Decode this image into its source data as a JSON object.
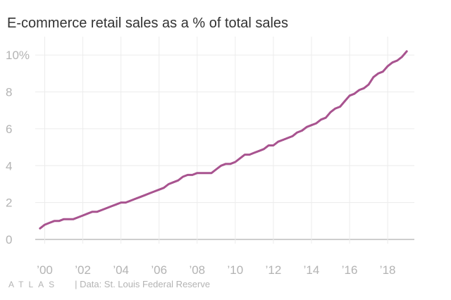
{
  "chart_data": {
    "type": "line",
    "title": "E-commerce retail sales as a % of total sales",
    "xlabel": "",
    "ylabel": "",
    "xlim": [
      1999.5,
      2019.4
    ],
    "ylim": [
      0,
      11
    ],
    "yticks": [
      {
        "value": 0,
        "label": "0"
      },
      {
        "value": 2,
        "label": "2"
      },
      {
        "value": 4,
        "label": "4"
      },
      {
        "value": 6,
        "label": "6"
      },
      {
        "value": 8,
        "label": "8"
      },
      {
        "value": 10,
        "label": "10%"
      }
    ],
    "xticks": [
      {
        "value": 2000,
        "label": "’00"
      },
      {
        "value": 2002,
        "label": "’02"
      },
      {
        "value": 2004,
        "label": "’04"
      },
      {
        "value": 2006,
        "label": "’06"
      },
      {
        "value": 2008,
        "label": "’08"
      },
      {
        "value": 2010,
        "label": "’10"
      },
      {
        "value": 2012,
        "label": "’12"
      },
      {
        "value": 2014,
        "label": "’14"
      },
      {
        "value": 2016,
        "label": "’16"
      },
      {
        "value": 2018,
        "label": "’18"
      }
    ],
    "grid": true,
    "series": [
      {
        "color": "#a8538f",
        "points": [
          [
            1999.75,
            0.6
          ],
          [
            2000.0,
            0.8
          ],
          [
            2000.25,
            0.9
          ],
          [
            2000.5,
            1.0
          ],
          [
            2000.75,
            1.0
          ],
          [
            2001.0,
            1.1
          ],
          [
            2001.25,
            1.1
          ],
          [
            2001.5,
            1.1
          ],
          [
            2001.75,
            1.2
          ],
          [
            2002.0,
            1.3
          ],
          [
            2002.25,
            1.4
          ],
          [
            2002.5,
            1.5
          ],
          [
            2002.75,
            1.5
          ],
          [
            2003.0,
            1.6
          ],
          [
            2003.25,
            1.7
          ],
          [
            2003.5,
            1.8
          ],
          [
            2003.75,
            1.9
          ],
          [
            2004.0,
            2.0
          ],
          [
            2004.25,
            2.0
          ],
          [
            2004.5,
            2.1
          ],
          [
            2004.75,
            2.2
          ],
          [
            2005.0,
            2.3
          ],
          [
            2005.25,
            2.4
          ],
          [
            2005.5,
            2.5
          ],
          [
            2005.75,
            2.6
          ],
          [
            2006.0,
            2.7
          ],
          [
            2006.25,
            2.8
          ],
          [
            2006.5,
            3.0
          ],
          [
            2006.75,
            3.1
          ],
          [
            2007.0,
            3.2
          ],
          [
            2007.25,
            3.4
          ],
          [
            2007.5,
            3.5
          ],
          [
            2007.75,
            3.5
          ],
          [
            2008.0,
            3.6
          ],
          [
            2008.25,
            3.6
          ],
          [
            2008.5,
            3.6
          ],
          [
            2008.75,
            3.6
          ],
          [
            2009.0,
            3.8
          ],
          [
            2009.25,
            4.0
          ],
          [
            2009.5,
            4.1
          ],
          [
            2009.75,
            4.1
          ],
          [
            2010.0,
            4.2
          ],
          [
            2010.25,
            4.4
          ],
          [
            2010.5,
            4.6
          ],
          [
            2010.75,
            4.6
          ],
          [
            2011.0,
            4.7
          ],
          [
            2011.25,
            4.8
          ],
          [
            2011.5,
            4.9
          ],
          [
            2011.75,
            5.1
          ],
          [
            2012.0,
            5.1
          ],
          [
            2012.25,
            5.3
          ],
          [
            2012.5,
            5.4
          ],
          [
            2012.75,
            5.5
          ],
          [
            2013.0,
            5.6
          ],
          [
            2013.25,
            5.8
          ],
          [
            2013.5,
            5.9
          ],
          [
            2013.75,
            6.1
          ],
          [
            2014.0,
            6.2
          ],
          [
            2014.25,
            6.3
          ],
          [
            2014.5,
            6.5
          ],
          [
            2014.75,
            6.6
          ],
          [
            2015.0,
            6.9
          ],
          [
            2015.25,
            7.1
          ],
          [
            2015.5,
            7.2
          ],
          [
            2015.75,
            7.5
          ],
          [
            2016.0,
            7.8
          ],
          [
            2016.25,
            7.9
          ],
          [
            2016.5,
            8.1
          ],
          [
            2016.75,
            8.2
          ],
          [
            2017.0,
            8.4
          ],
          [
            2017.25,
            8.8
          ],
          [
            2017.5,
            9.0
          ],
          [
            2017.75,
            9.1
          ],
          [
            2018.0,
            9.4
          ],
          [
            2018.25,
            9.6
          ],
          [
            2018.5,
            9.7
          ],
          [
            2018.75,
            9.9
          ],
          [
            2019.0,
            10.2
          ]
        ]
      }
    ]
  },
  "footer": {
    "brand": "ATLAS",
    "source": "| Data: St. Louis Federal Reserve"
  }
}
